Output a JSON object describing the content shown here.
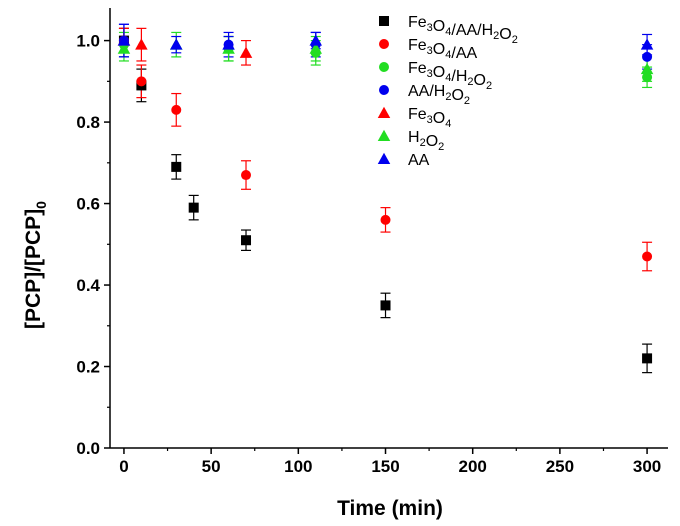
{
  "chart_data": {
    "type": "scatter",
    "title": "",
    "xlabel": "Time (min)",
    "ylabel_parts": [
      "[PCP]/[PCP]",
      "0"
    ],
    "xlim": [
      -8,
      312
    ],
    "ylim": [
      0,
      1.08
    ],
    "x_ticks": [
      0,
      50,
      100,
      150,
      200,
      250,
      300
    ],
    "y_ticks": [
      0.0,
      0.2,
      0.4,
      0.6,
      0.8,
      1.0
    ],
    "y_tick_labels": [
      "0.0",
      "0.2",
      "0.4",
      "0.6",
      "0.8",
      "1.0"
    ],
    "grid": false,
    "legend_position": "top-right",
    "series": [
      {
        "name": "Fe3O4/AA/H2O2",
        "legend_label": [
          [
            "Fe",
            ""
          ],
          [
            "3",
            "sub"
          ],
          [
            "O",
            ""
          ],
          [
            "4",
            "sub"
          ],
          [
            "/AA/H",
            ""
          ],
          [
            "2",
            "sub"
          ],
          [
            "O",
            ""
          ],
          [
            "2",
            "sub"
          ]
        ],
        "marker": "square",
        "color": "#000000",
        "points": [
          {
            "x": 0,
            "y": 1.0,
            "err": 0.03
          },
          {
            "x": 10,
            "y": 0.89,
            "err": 0.04
          },
          {
            "x": 30,
            "y": 0.69,
            "err": 0.03
          },
          {
            "x": 40,
            "y": 0.59,
            "err": 0.03
          },
          {
            "x": 70,
            "y": 0.51,
            "err": 0.025
          },
          {
            "x": 150,
            "y": 0.35,
            "err": 0.03
          },
          {
            "x": 300,
            "y": 0.22,
            "err": 0.035
          }
        ]
      },
      {
        "name": "Fe3O4/AA",
        "legend_label": [
          [
            "Fe",
            ""
          ],
          [
            "3",
            "sub"
          ],
          [
            "O",
            ""
          ],
          [
            "4",
            "sub"
          ],
          [
            "/AA",
            ""
          ]
        ],
        "marker": "circle",
        "color": "#ff0000",
        "points": [
          {
            "x": 0,
            "y": 1.0,
            "err": 0.03
          },
          {
            "x": 10,
            "y": 0.9,
            "err": 0.04
          },
          {
            "x": 30,
            "y": 0.83,
            "err": 0.04
          },
          {
            "x": 70,
            "y": 0.67,
            "err": 0.035
          },
          {
            "x": 150,
            "y": 0.56,
            "err": 0.03
          },
          {
            "x": 300,
            "y": 0.47,
            "err": 0.035
          }
        ]
      },
      {
        "name": "Fe3O4/H2O2",
        "legend_label": [
          [
            "Fe",
            ""
          ],
          [
            "3",
            "sub"
          ],
          [
            "O",
            ""
          ],
          [
            "4",
            "sub"
          ],
          [
            "/H",
            ""
          ],
          [
            "2",
            "sub"
          ],
          [
            "O",
            ""
          ],
          [
            "2",
            "sub"
          ]
        ],
        "marker": "circle",
        "color": "#22dd22",
        "points": [
          {
            "x": 0,
            "y": 0.99,
            "err": 0.03
          },
          {
            "x": 60,
            "y": 0.98,
            "err": 0.03
          },
          {
            "x": 110,
            "y": 0.97,
            "err": 0.03
          },
          {
            "x": 300,
            "y": 0.91,
            "err": 0.025
          }
        ]
      },
      {
        "name": "AA/H2O2",
        "legend_label": [
          [
            "AA/H",
            ""
          ],
          [
            "2",
            "sub"
          ],
          [
            "O",
            ""
          ],
          [
            "2",
            "sub"
          ]
        ],
        "marker": "circle",
        "color": "#0000ee",
        "points": [
          {
            "x": 0,
            "y": 1.0,
            "err": 0.04
          },
          {
            "x": 60,
            "y": 0.99,
            "err": 0.03
          },
          {
            "x": 110,
            "y": 0.99,
            "err": 0.03
          },
          {
            "x": 300,
            "y": 0.96,
            "err": 0.03
          }
        ]
      },
      {
        "name": "Fe3O4",
        "legend_label": [
          [
            "Fe",
            ""
          ],
          [
            "3",
            "sub"
          ],
          [
            "O",
            ""
          ],
          [
            "4",
            "sub"
          ]
        ],
        "marker": "triangle",
        "color": "#ff0000",
        "points": [
          {
            "x": 0,
            "y": 1.0,
            "err": 0.03
          },
          {
            "x": 10,
            "y": 0.99,
            "err": 0.04
          },
          {
            "x": 70,
            "y": 0.97,
            "err": 0.03
          }
        ]
      },
      {
        "name": "H2O2",
        "legend_label": [
          [
            "H",
            ""
          ],
          [
            "2",
            "sub"
          ],
          [
            "O",
            ""
          ],
          [
            "2",
            "sub"
          ]
        ],
        "marker": "triangle",
        "color": "#22dd22",
        "points": [
          {
            "x": 0,
            "y": 0.98,
            "err": 0.03
          },
          {
            "x": 30,
            "y": 0.99,
            "err": 0.03
          },
          {
            "x": 60,
            "y": 0.98,
            "err": 0.03
          },
          {
            "x": 110,
            "y": 0.98,
            "err": 0.03
          },
          {
            "x": 300,
            "y": 0.93,
            "err": 0.03
          }
        ]
      },
      {
        "name": "AA",
        "legend_label": [
          [
            "AA",
            ""
          ]
        ],
        "marker": "triangle",
        "color": "#0000ee",
        "points": [
          {
            "x": 0,
            "y": 1.0,
            "err": 0.04
          },
          {
            "x": 30,
            "y": 0.99,
            "err": 0.02
          },
          {
            "x": 60,
            "y": 0.99,
            "err": 0.02
          },
          {
            "x": 110,
            "y": 1.0,
            "err": 0.02
          },
          {
            "x": 300,
            "y": 0.99,
            "err": 0.025
          }
        ]
      }
    ]
  }
}
